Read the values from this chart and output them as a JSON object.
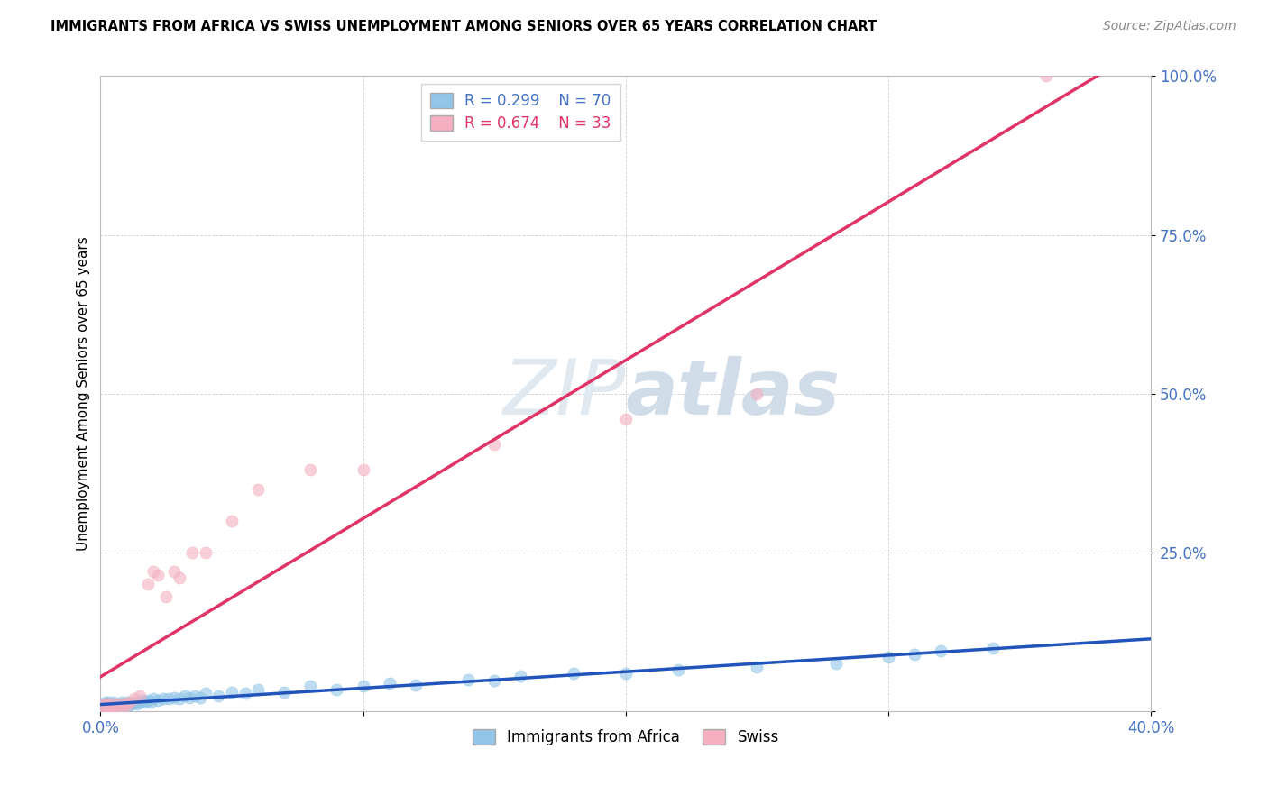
{
  "title": "IMMIGRANTS FROM AFRICA VS SWISS UNEMPLOYMENT AMONG SENIORS OVER 65 YEARS CORRELATION CHART",
  "source": "Source: ZipAtlas.com",
  "ylabel": "Unemployment Among Seniors over 65 years",
  "xlim": [
    0.0,
    0.4
  ],
  "ylim": [
    0.0,
    1.0
  ],
  "blue_color": "#92c5e8",
  "pink_color": "#f4b0c0",
  "blue_line_color": "#2255bb",
  "pink_line_color": "#e03366",
  "blue_R": 0.299,
  "blue_N": 70,
  "pink_R": 0.674,
  "pink_N": 33,
  "tick_color": "#4472c4",
  "grid_color": "#cccccc",
  "blue_x": [
    0.001,
    0.001,
    0.001,
    0.001,
    0.002,
    0.002,
    0.002,
    0.002,
    0.002,
    0.003,
    0.003,
    0.003,
    0.003,
    0.004,
    0.004,
    0.004,
    0.005,
    0.005,
    0.005,
    0.006,
    0.006,
    0.007,
    0.007,
    0.008,
    0.008,
    0.009,
    0.01,
    0.01,
    0.011,
    0.012,
    0.013,
    0.014,
    0.015,
    0.016,
    0.017,
    0.018,
    0.019,
    0.02,
    0.022,
    0.024,
    0.026,
    0.028,
    0.03,
    0.032,
    0.034,
    0.036,
    0.038,
    0.04,
    0.045,
    0.05,
    0.055,
    0.06,
    0.07,
    0.08,
    0.09,
    0.1,
    0.11,
    0.12,
    0.14,
    0.15,
    0.16,
    0.18,
    0.2,
    0.22,
    0.25,
    0.28,
    0.3,
    0.31,
    0.32,
    0.34
  ],
  "blue_y": [
    0.005,
    0.008,
    0.01,
    0.012,
    0.005,
    0.008,
    0.01,
    0.012,
    0.015,
    0.005,
    0.008,
    0.01,
    0.015,
    0.005,
    0.008,
    0.012,
    0.005,
    0.01,
    0.015,
    0.005,
    0.01,
    0.008,
    0.012,
    0.01,
    0.015,
    0.012,
    0.008,
    0.015,
    0.01,
    0.012,
    0.015,
    0.012,
    0.015,
    0.018,
    0.015,
    0.018,
    0.015,
    0.02,
    0.018,
    0.02,
    0.02,
    0.022,
    0.02,
    0.025,
    0.022,
    0.025,
    0.022,
    0.028,
    0.025,
    0.03,
    0.028,
    0.035,
    0.03,
    0.04,
    0.035,
    0.04,
    0.045,
    0.042,
    0.05,
    0.048,
    0.055,
    0.06,
    0.06,
    0.065,
    0.07,
    0.075,
    0.085,
    0.09,
    0.095,
    0.1
  ],
  "pink_x": [
    0.001,
    0.001,
    0.002,
    0.002,
    0.003,
    0.003,
    0.004,
    0.005,
    0.005,
    0.006,
    0.007,
    0.008,
    0.009,
    0.01,
    0.011,
    0.013,
    0.015,
    0.018,
    0.02,
    0.022,
    0.025,
    0.028,
    0.03,
    0.035,
    0.04,
    0.05,
    0.06,
    0.08,
    0.1,
    0.15,
    0.2,
    0.25,
    0.36
  ],
  "pink_y": [
    0.005,
    0.01,
    0.005,
    0.01,
    0.008,
    0.012,
    0.008,
    0.005,
    0.012,
    0.008,
    0.01,
    0.005,
    0.012,
    0.01,
    0.015,
    0.02,
    0.025,
    0.2,
    0.22,
    0.215,
    0.18,
    0.22,
    0.21,
    0.25,
    0.25,
    0.3,
    0.35,
    0.38,
    0.38,
    0.42,
    0.46,
    0.5,
    1.0
  ]
}
